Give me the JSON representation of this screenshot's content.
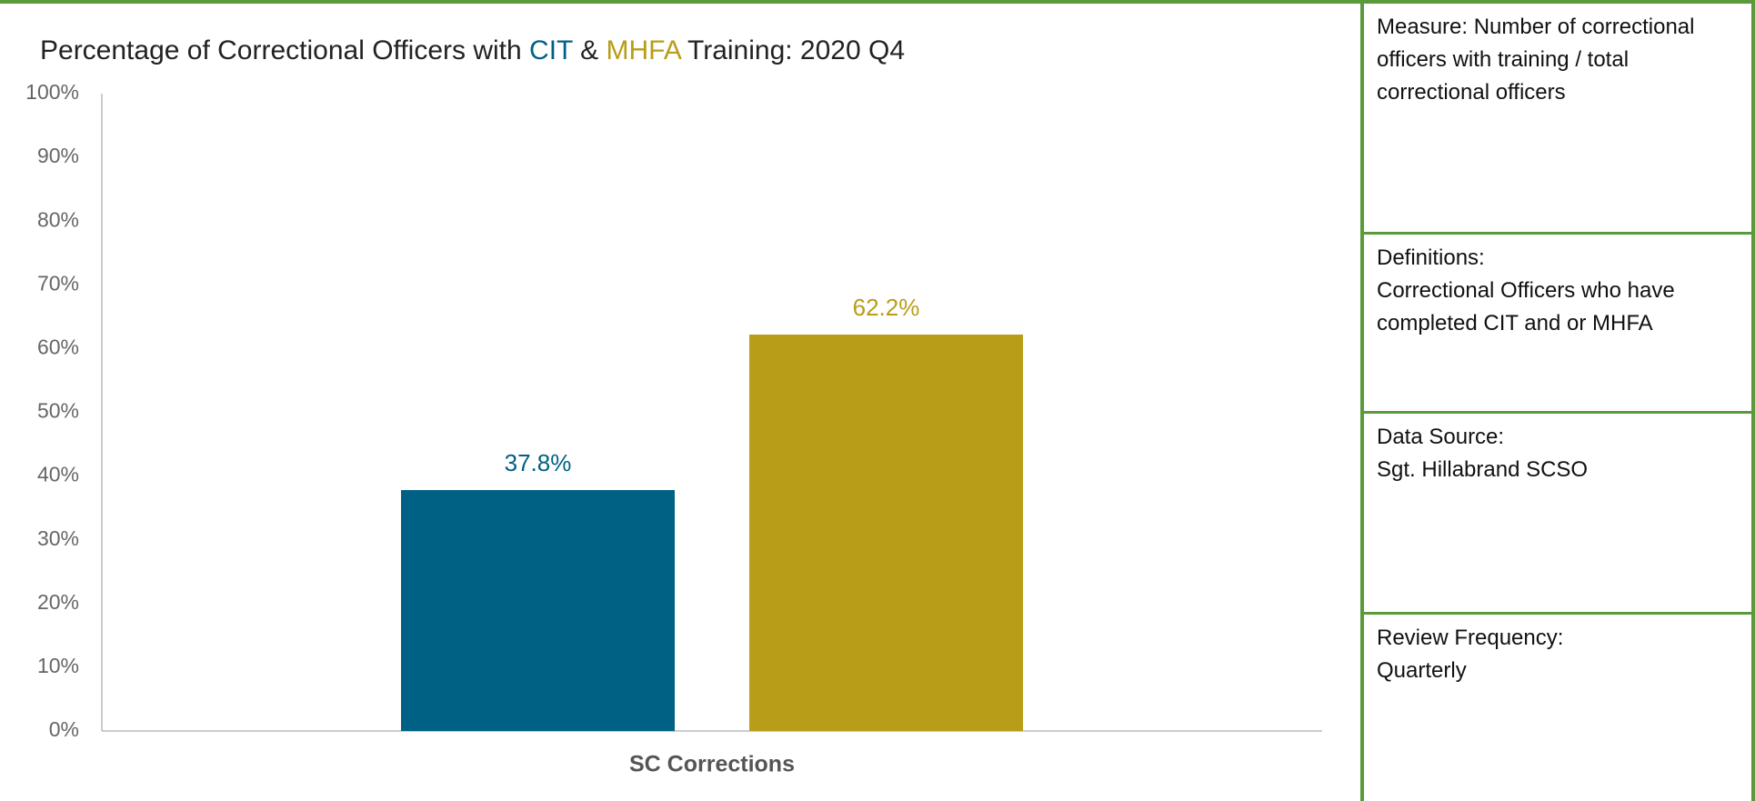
{
  "chart_data": {
    "type": "bar",
    "title": [
      "Percentage of Correctional Officers with ",
      " & ",
      " Training: 2020 Q4"
    ],
    "categories": [
      "SC Corrections"
    ],
    "series": [
      {
        "name": "CIT",
        "color": "#006185",
        "values": [
          37.8
        ],
        "value_labels": [
          "37.8%"
        ]
      },
      {
        "name": "MHFA",
        "color": "#b89d18",
        "values": [
          62.2
        ],
        "value_labels": [
          "62.2%"
        ]
      }
    ],
    "ylim": [
      0,
      100
    ],
    "yticks": [
      {
        "value": 0,
        "label": "0%"
      },
      {
        "value": 10,
        "label": "10%"
      },
      {
        "value": 20,
        "label": "20%"
      },
      {
        "value": 30,
        "label": "30%"
      },
      {
        "value": 40,
        "label": "40%"
      },
      {
        "value": 50,
        "label": "50%"
      },
      {
        "value": 60,
        "label": "60%"
      },
      {
        "value": 70,
        "label": "70%"
      },
      {
        "value": 80,
        "label": "80%"
      },
      {
        "value": 90,
        "label": "90%"
      },
      {
        "value": 100,
        "label": "100%"
      }
    ],
    "grid": false
  },
  "panels": [
    {
      "heading": "Measure:",
      "text": "Number of correctional officers with training / total correctional officers"
    },
    {
      "heading": "Definitions:",
      "text": "Correctional Officers who have completed CIT and or MHFA"
    },
    {
      "heading": "Data Source:",
      "text": "Sgt. Hillabrand SCSO"
    },
    {
      "heading": "Review Frequency:",
      "text": "Quarterly"
    }
  ]
}
